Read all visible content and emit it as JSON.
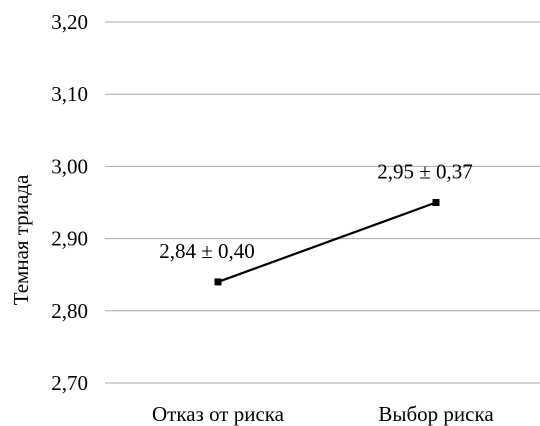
{
  "chart_data": {
    "type": "line",
    "categories": [
      "Отказ от риска",
      "Выбор риска"
    ],
    "series": [
      {
        "values": [
          2.84,
          2.95
        ]
      }
    ],
    "data_labels": [
      "2,84 ± 0,40",
      "2,95 ± 0,37"
    ],
    "ylabel": "Темная триада",
    "xlabel": "",
    "ylim": [
      2.7,
      3.2
    ],
    "yticks": [
      2.7,
      2.8,
      2.9,
      3.0,
      3.1,
      3.2
    ],
    "ytick_labels": [
      "2,70",
      "2,80",
      "2,90",
      "3,00",
      "3,10",
      "3,20"
    ],
    "grid": true,
    "legend": "none",
    "line_color": "#000000",
    "grid_color": "#a6a6a6"
  }
}
